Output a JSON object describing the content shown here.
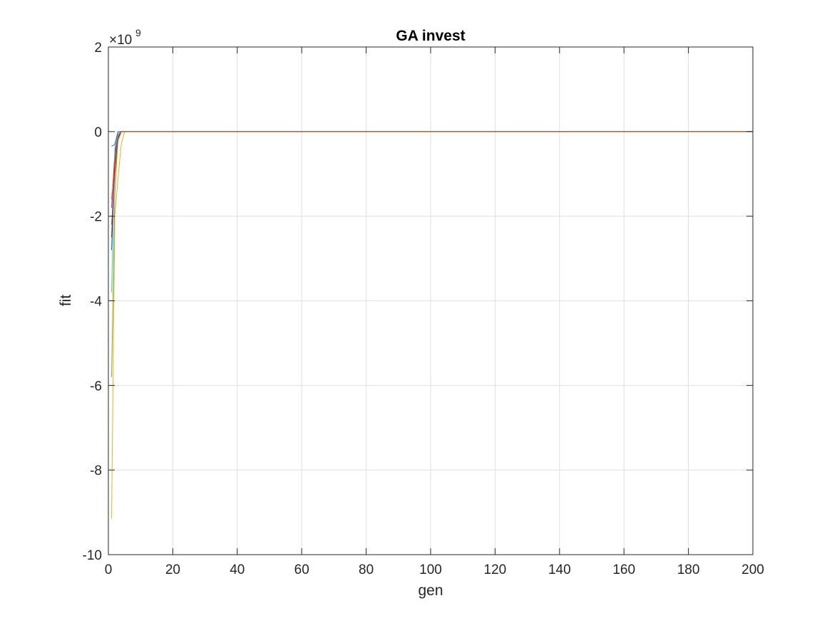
{
  "chart_data": {
    "type": "line",
    "title": "GA invest",
    "xlabel": "gen",
    "ylabel": "fit",
    "xlim": [
      0,
      200
    ],
    "ylim": [
      -10,
      2
    ],
    "y_multiplier": "10",
    "y_multiplier_exponent": "9",
    "y_multiplier_prefix": "×",
    "xticks": [
      0,
      20,
      40,
      60,
      80,
      100,
      120,
      140,
      160,
      180,
      200
    ],
    "yticks": [
      -10,
      -8,
      -6,
      -4,
      -2,
      0,
      2
    ],
    "xtick_labels": [
      "0",
      "20",
      "40",
      "60",
      "80",
      "100",
      "120",
      "140",
      "160",
      "180",
      "200"
    ],
    "ytick_labels": [
      "-10",
      "-8",
      "-6",
      "-4",
      "-2",
      "0",
      "2"
    ],
    "grid": true,
    "series": [
      {
        "color": "#0072BD",
        "x": [
          1,
          2,
          3,
          4,
          200
        ],
        "y": [
          -2.8,
          -0.6,
          -0.05,
          0,
          0
        ]
      },
      {
        "color": "#D95319",
        "x": [
          1,
          2,
          3,
          4,
          200
        ],
        "y": [
          -2.2,
          -1.0,
          -0.2,
          0,
          0
        ]
      },
      {
        "color": "#EDB120",
        "x": [
          1,
          2,
          3,
          4,
          5,
          200
        ],
        "y": [
          -9.15,
          -2.0,
          -1.1,
          -0.3,
          0,
          0
        ]
      },
      {
        "color": "#7E2F8E",
        "x": [
          1,
          2,
          3,
          4,
          200
        ],
        "y": [
          -1.8,
          -0.5,
          -0.05,
          0,
          0
        ]
      },
      {
        "color": "#77AC30",
        "x": [
          1,
          2,
          3,
          4,
          200
        ],
        "y": [
          -5.8,
          -1.5,
          -0.1,
          0,
          0
        ]
      },
      {
        "color": "#4DBEEE",
        "x": [
          1,
          2,
          3,
          4,
          200
        ],
        "y": [
          -3.8,
          -0.4,
          -0.05,
          0,
          0
        ]
      },
      {
        "color": "#A2142F",
        "x": [
          1,
          2,
          3,
          4,
          200
        ],
        "y": [
          -2.5,
          -0.8,
          -0.15,
          0,
          0
        ]
      },
      {
        "color": "#0072BD",
        "x": [
          1,
          2,
          3,
          200
        ],
        "y": [
          -0.35,
          -0.3,
          0,
          0
        ]
      },
      {
        "color": "#D95319",
        "x": [
          1,
          2,
          3,
          4,
          200
        ],
        "y": [
          -1.6,
          -0.7,
          -0.1,
          0,
          0
        ]
      }
    ]
  }
}
